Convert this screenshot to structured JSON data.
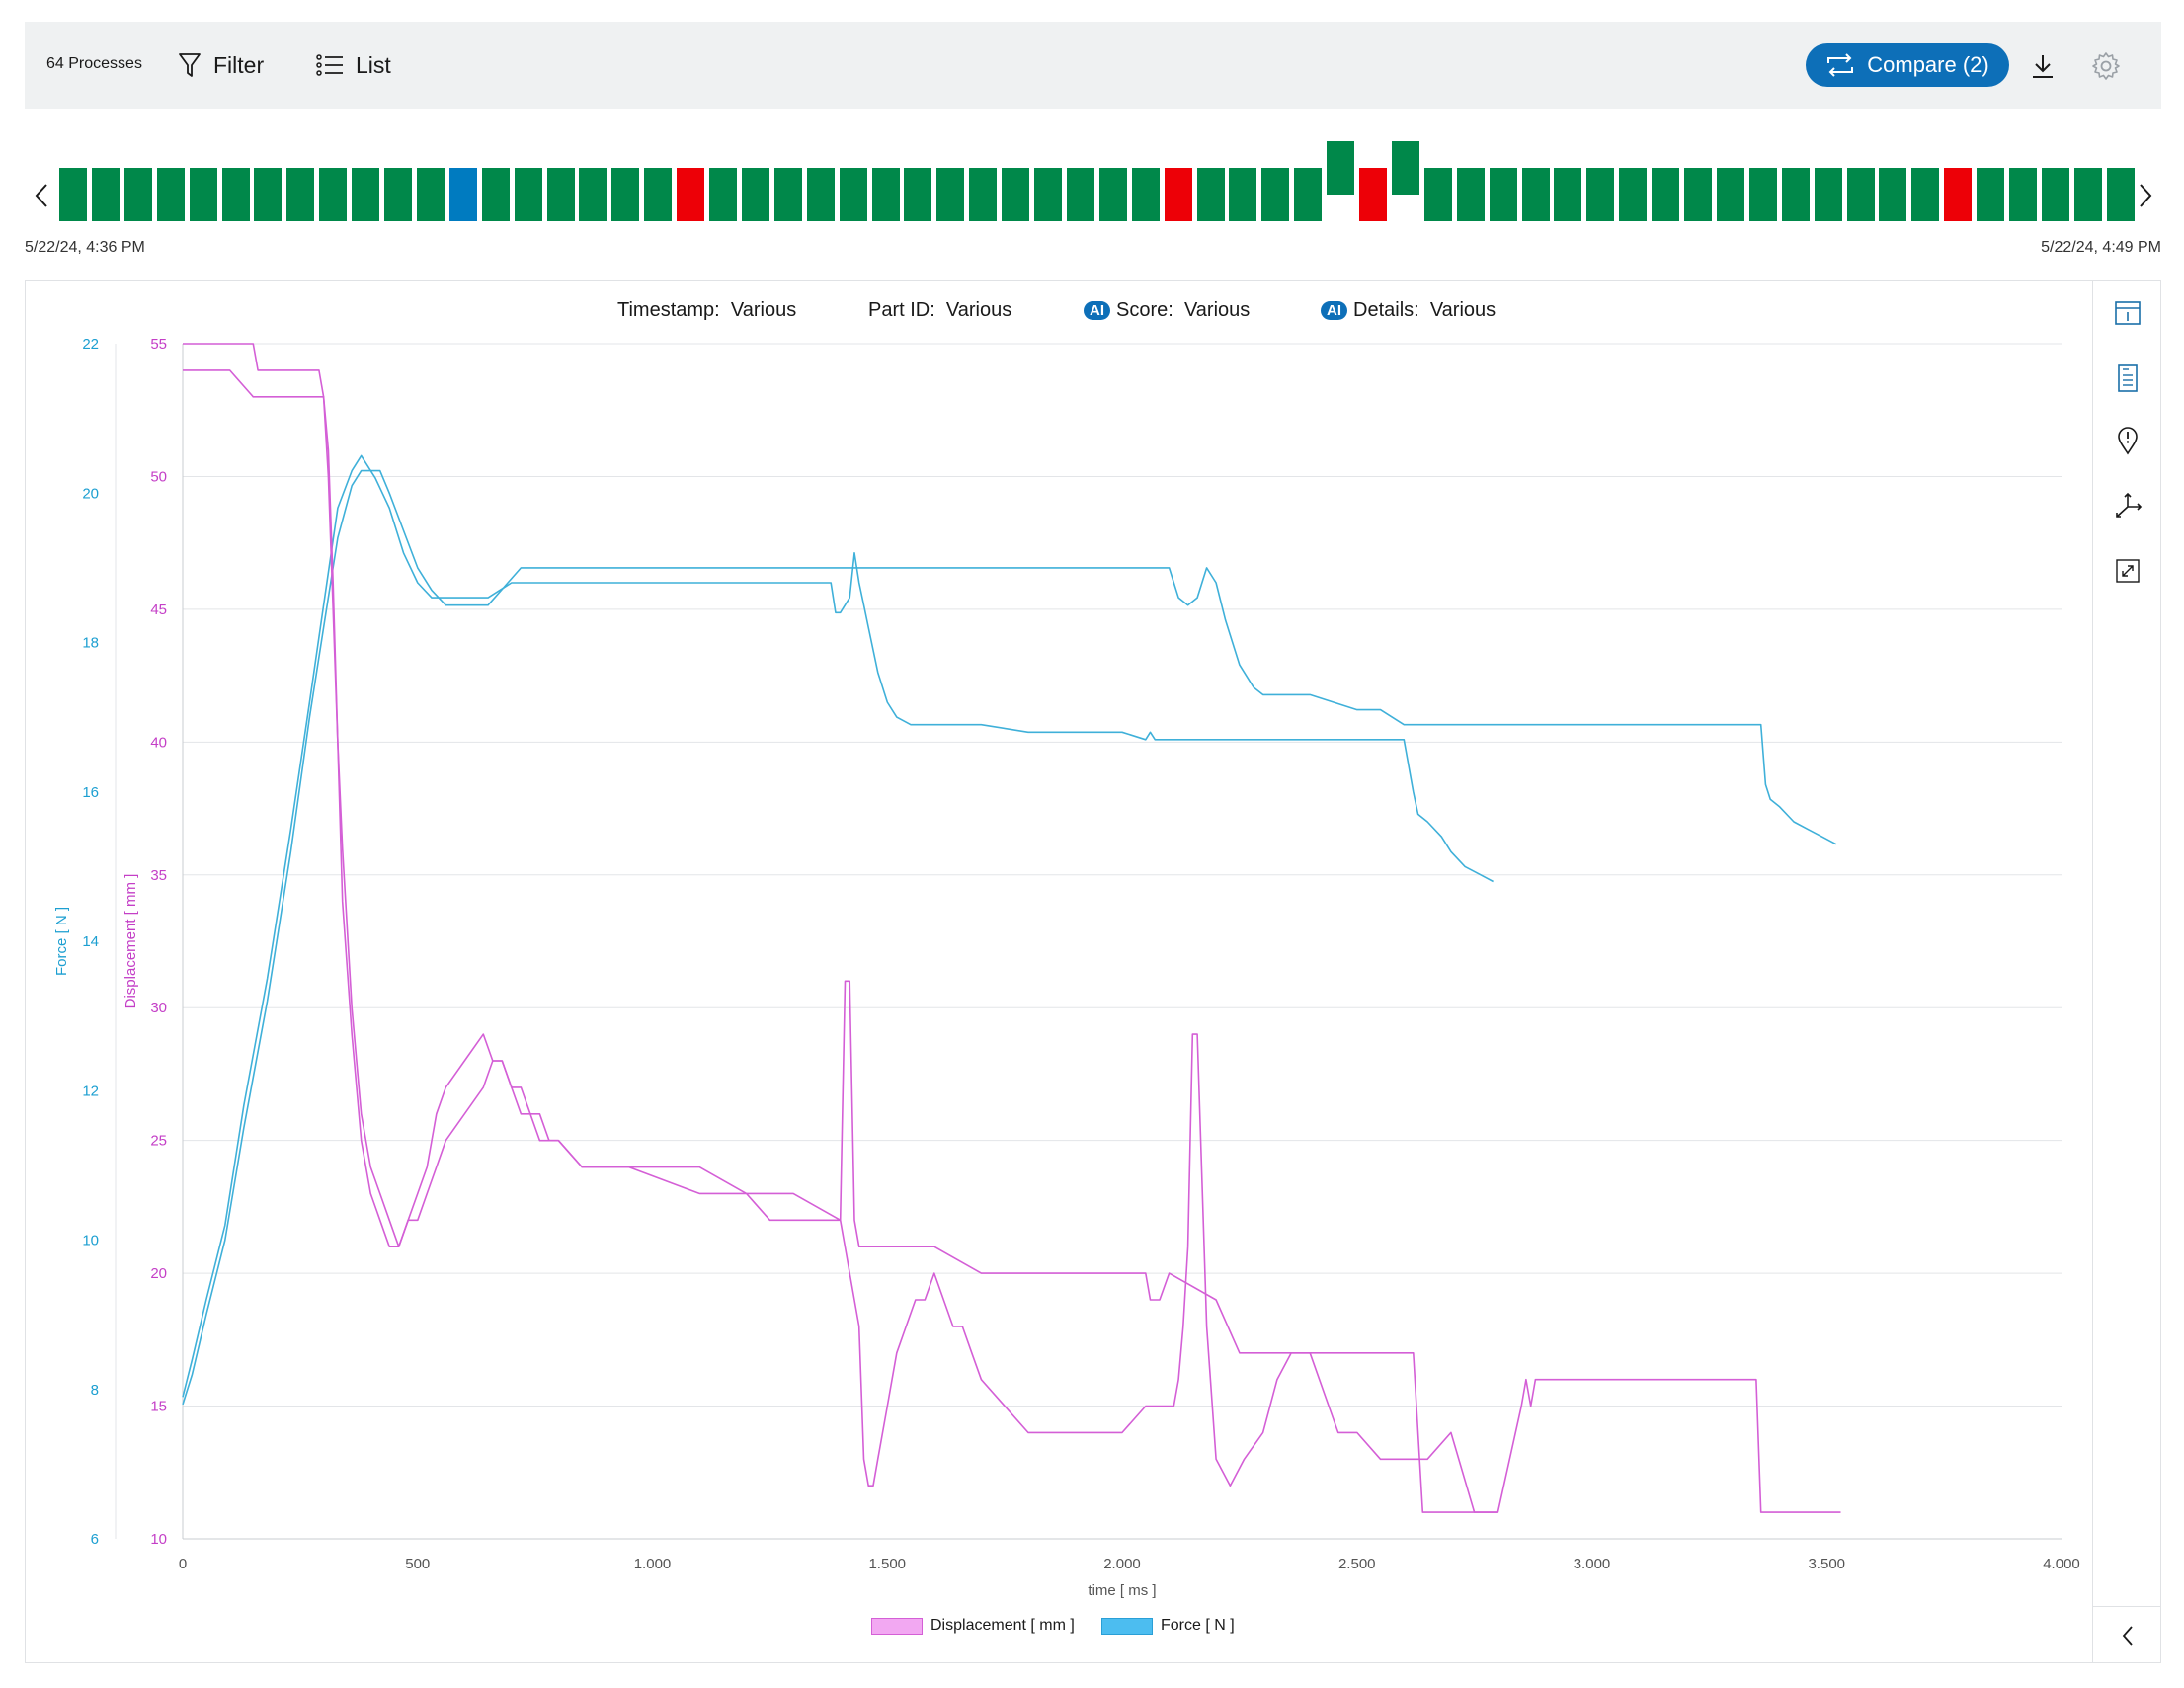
{
  "toolbar": {
    "process_count": "64 Processes",
    "filter_label": "Filter",
    "list_label": "List",
    "compare_label": "Compare (2)"
  },
  "icons": {
    "filter": "filter-icon",
    "list": "list-icon",
    "compare": "compare-icon",
    "download": "download-icon",
    "settings": "gear-icon"
  },
  "timeline": {
    "start_label": "5/22/24, 4:36 PM",
    "end_label": "5/22/24, 4:49 PM",
    "statuses": [
      "ok",
      "ok",
      "ok",
      "ok",
      "ok",
      "ok",
      "ok",
      "ok",
      "ok",
      "ok",
      "ok",
      "ok",
      "selected",
      "ok",
      "ok",
      "ok",
      "ok",
      "ok",
      "ok",
      "nok",
      "ok",
      "ok",
      "ok",
      "ok",
      "ok",
      "ok",
      "ok",
      "ok",
      "ok",
      "ok",
      "ok",
      "ok",
      "ok",
      "ok",
      "nok",
      "ok",
      "ok",
      "ok",
      "ok",
      "compare",
      "nok",
      "compare",
      "ok",
      "ok",
      "ok",
      "ok",
      "ok",
      "ok",
      "ok",
      "ok",
      "ok",
      "ok",
      "ok",
      "ok",
      "ok",
      "ok",
      "ok",
      "ok",
      "nok",
      "ok",
      "ok",
      "ok",
      "ok",
      "ok"
    ],
    "colors": {
      "ok": "#00884a",
      "nok": "#ed0007",
      "selected": "#007bc0"
    }
  },
  "meta": {
    "timestamp_label": "Timestamp:",
    "timestamp_value": "Various",
    "part_label": "Part ID:",
    "part_value": "Various",
    "ai_badge": "AI",
    "score_label": "Score:",
    "score_value": "Various",
    "details_label": "Details:",
    "details_value": "Various"
  },
  "side_icons": [
    "info-panel-icon",
    "document-list-icon",
    "alert-pin-icon",
    "axes-icon",
    "fit-view-icon",
    "collapse-chevron-icon"
  ],
  "chart_data": {
    "type": "line",
    "xlabel": "time [ ms ]",
    "xlim": [
      0,
      4000
    ],
    "x_ticks": [
      "0",
      "500",
      "1.000",
      "1.500",
      "2.000",
      "2.500",
      "3.000",
      "3.500",
      "4.000"
    ],
    "y_left_label": "Force [ N ]",
    "y_left_lim": [
      6,
      22
    ],
    "y_left_ticks": [
      "6",
      "8",
      "10",
      "12",
      "14",
      "16",
      "18",
      "20",
      "22"
    ],
    "y_right_label": "Displacement [ mm ]",
    "y_right_lim": [
      10,
      55
    ],
    "y_right_ticks": [
      "10",
      "15",
      "20",
      "25",
      "30",
      "35",
      "40",
      "45",
      "50",
      "55"
    ],
    "grid": true,
    "legend": [
      "Displacement [ mm ]",
      "Force [ N ]"
    ],
    "colors": {
      "force": "#3fb0d9",
      "displacement": "#d45fd6"
    },
    "series": [
      {
        "axis": "force",
        "x": [
          0,
          20,
          50,
          90,
          130,
          180,
          230,
          270,
          300,
          330,
          360,
          380,
          410,
          440,
          470,
          500,
          530,
          560,
          600,
          650,
          700,
          800,
          1000,
          1200,
          1380,
          1390,
          1400,
          1420,
          1430,
          1440,
          1450,
          1460,
          1480,
          1500,
          1520,
          1550,
          1600,
          1700,
          1800,
          1900,
          2000,
          2050,
          2060,
          2070,
          2080,
          2200,
          2400,
          2600,
          2620,
          2630,
          2650,
          2680,
          2700,
          2730,
          2760,
          2790
        ],
        "y": [
          7.9,
          8.4,
          9.2,
          10.2,
          11.8,
          13.5,
          15.5,
          17.2,
          18.5,
          19.8,
          20.3,
          20.5,
          20.2,
          19.8,
          19.2,
          18.8,
          18.6,
          18.6,
          18.6,
          18.6,
          18.8,
          18.8,
          18.8,
          18.8,
          18.8,
          18.4,
          18.4,
          18.6,
          19.2,
          18.8,
          18.5,
          18.2,
          17.6,
          17.2,
          17.0,
          16.9,
          16.9,
          16.9,
          16.8,
          16.8,
          16.8,
          16.7,
          16.8,
          16.7,
          16.7,
          16.7,
          16.7,
          16.7,
          16.0,
          15.7,
          15.6,
          15.4,
          15.2,
          15.0,
          14.9,
          14.8
        ]
      },
      {
        "axis": "force",
        "x": [
          0,
          20,
          50,
          90,
          130,
          180,
          230,
          270,
          300,
          330,
          360,
          380,
          420,
          440,
          470,
          500,
          530,
          560,
          600,
          650,
          720,
          900,
          1100,
          1300,
          1400,
          1420,
          1430,
          1450,
          1480,
          1500,
          1530,
          1560,
          1600,
          1800,
          2000,
          2100,
          2120,
          2140,
          2160,
          2180,
          2200,
          2220,
          2250,
          2280,
          2300,
          2400,
          2500,
          2550,
          2600,
          2800,
          3000,
          3200,
          3360,
          3370,
          3380,
          3400,
          3430,
          3460,
          3490,
          3520
        ],
        "y": [
          7.8,
          8.2,
          9.0,
          10.0,
          11.5,
          13.2,
          15.2,
          17.0,
          18.2,
          19.4,
          20.1,
          20.3,
          20.3,
          20.0,
          19.5,
          19.0,
          18.7,
          18.5,
          18.5,
          18.5,
          19.0,
          19.0,
          19.0,
          19.0,
          19.0,
          19.0,
          19.0,
          19.0,
          19.0,
          19.0,
          19.0,
          19.0,
          19.0,
          19.0,
          19.0,
          19.0,
          18.6,
          18.5,
          18.6,
          19.0,
          18.8,
          18.3,
          17.7,
          17.4,
          17.3,
          17.3,
          17.1,
          17.1,
          16.9,
          16.9,
          16.9,
          16.9,
          16.9,
          16.1,
          15.9,
          15.8,
          15.6,
          15.5,
          15.4,
          15.3
        ]
      },
      {
        "axis": "displacement",
        "x": [
          0,
          100,
          150,
          300,
          310,
          320,
          330,
          340,
          360,
          380,
          400,
          420,
          440,
          460,
          480,
          500,
          520,
          540,
          560,
          600,
          640,
          660,
          680,
          700,
          720,
          740,
          760,
          780,
          800,
          850,
          950,
          1100,
          1200,
          1250,
          1300,
          1400,
          1440,
          1450,
          1460,
          1470,
          1480,
          1500,
          1520,
          1540,
          1560,
          1580,
          1600,
          1620,
          1640,
          1660,
          1680,
          1700,
          1800,
          1900,
          1950,
          2000,
          2050,
          2100,
          2110,
          2120,
          2130,
          2140,
          2150,
          2160,
          2180,
          2200,
          2230,
          2260,
          2300,
          2330,
          2360,
          2400,
          2440,
          2460,
          2500,
          2550,
          2600,
          2650,
          2700,
          2750,
          2800
        ],
        "y": [
          54,
          54,
          53,
          53,
          51,
          46,
          40,
          34,
          29,
          25,
          23,
          22,
          21,
          21,
          22,
          23,
          24,
          26,
          27,
          28,
          29,
          28,
          28,
          27,
          26,
          26,
          25,
          25,
          25,
          24,
          24,
          23,
          23,
          22,
          22,
          22,
          18,
          13,
          12,
          12,
          13,
          15,
          17,
          18,
          19,
          19,
          20,
          19,
          18,
          18,
          17,
          16,
          14,
          14,
          14,
          14,
          15,
          15,
          15,
          16,
          18,
          21,
          29,
          29,
          18,
          13,
          12,
          13,
          14,
          16,
          17,
          17,
          15,
          14,
          14,
          13,
          13,
          13,
          14,
          11,
          11
        ]
      },
      {
        "axis": "displacement",
        "x": [
          0,
          100,
          150,
          160,
          200,
          290,
          300,
          310,
          320,
          330,
          340,
          360,
          380,
          400,
          420,
          440,
          460,
          480,
          500,
          520,
          540,
          560,
          600,
          640,
          660,
          680,
          700,
          720,
          740,
          760,
          780,
          800,
          850,
          950,
          1100,
          1200,
          1250,
          1300,
          1400,
          1410,
          1420,
          1430,
          1440,
          1460,
          1480,
          1500,
          1600,
          1700,
          1800,
          1900,
          2000,
          2050,
          2060,
          2070,
          2080,
          2100,
          2200,
          2250,
          2300,
          2400,
          2500,
          2600,
          2620,
          2640,
          2660,
          2700,
          2800,
          2850,
          2860,
          2870,
          2880,
          2900,
          2950,
          3000,
          3100,
          3200,
          3300,
          3350,
          3360,
          3370,
          3380,
          3400,
          3500,
          3530
        ],
        "y": [
          55,
          55,
          55,
          54,
          54,
          54,
          53,
          50,
          45,
          40,
          36,
          30,
          26,
          24,
          23,
          22,
          21,
          22,
          22,
          23,
          24,
          25,
          26,
          27,
          28,
          28,
          27,
          27,
          26,
          26,
          25,
          25,
          24,
          24,
          24,
          23,
          23,
          23,
          22,
          31,
          31,
          22,
          21,
          21,
          21,
          21,
          21,
          20,
          20,
          20,
          20,
          20,
          19,
          19,
          19,
          20,
          19,
          17,
          17,
          17,
          17,
          17,
          17,
          11,
          11,
          11,
          11,
          15,
          16,
          15,
          16,
          16,
          16,
          16,
          16,
          16,
          16,
          16,
          11,
          11,
          11,
          11,
          11,
          11
        ]
      }
    ]
  }
}
